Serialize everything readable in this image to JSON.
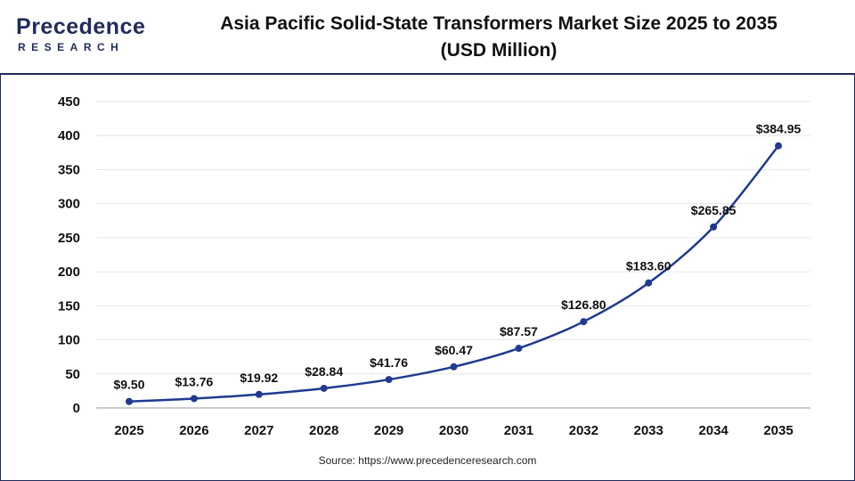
{
  "brand": {
    "name_top": "recedence",
    "name_letter": "P",
    "name_bottom": "RESEARCH",
    "color": "#1f2c5c"
  },
  "title_line1": "Asia Pacific Solid-State Transformers Market Size 2025 to 2035",
  "title_line2": "(USD Million)",
  "source": "Source: https://www.precedenceresearch.com",
  "chart_data": {
    "type": "line",
    "categories": [
      "2025",
      "2026",
      "2027",
      "2028",
      "2029",
      "2030",
      "2031",
      "2032",
      "2033",
      "2034",
      "2035"
    ],
    "values": [
      9.5,
      13.76,
      19.92,
      28.84,
      41.76,
      60.47,
      87.57,
      126.8,
      183.6,
      265.85,
      384.95
    ],
    "data_labels": [
      "$9.50",
      "$13.76",
      "$19.92",
      "$28.84",
      "$41.76",
      "$60.47",
      "$87.57",
      "$126.80",
      "$183.60",
      "$265.85",
      "$384.95"
    ],
    "yticks": [
      0,
      50,
      100,
      150,
      200,
      250,
      300,
      350,
      400,
      450
    ],
    "ylim": [
      0,
      450
    ],
    "grid": "horizontal",
    "line_color": "#1f3a8f",
    "marker_color": "#1f3a8f"
  }
}
